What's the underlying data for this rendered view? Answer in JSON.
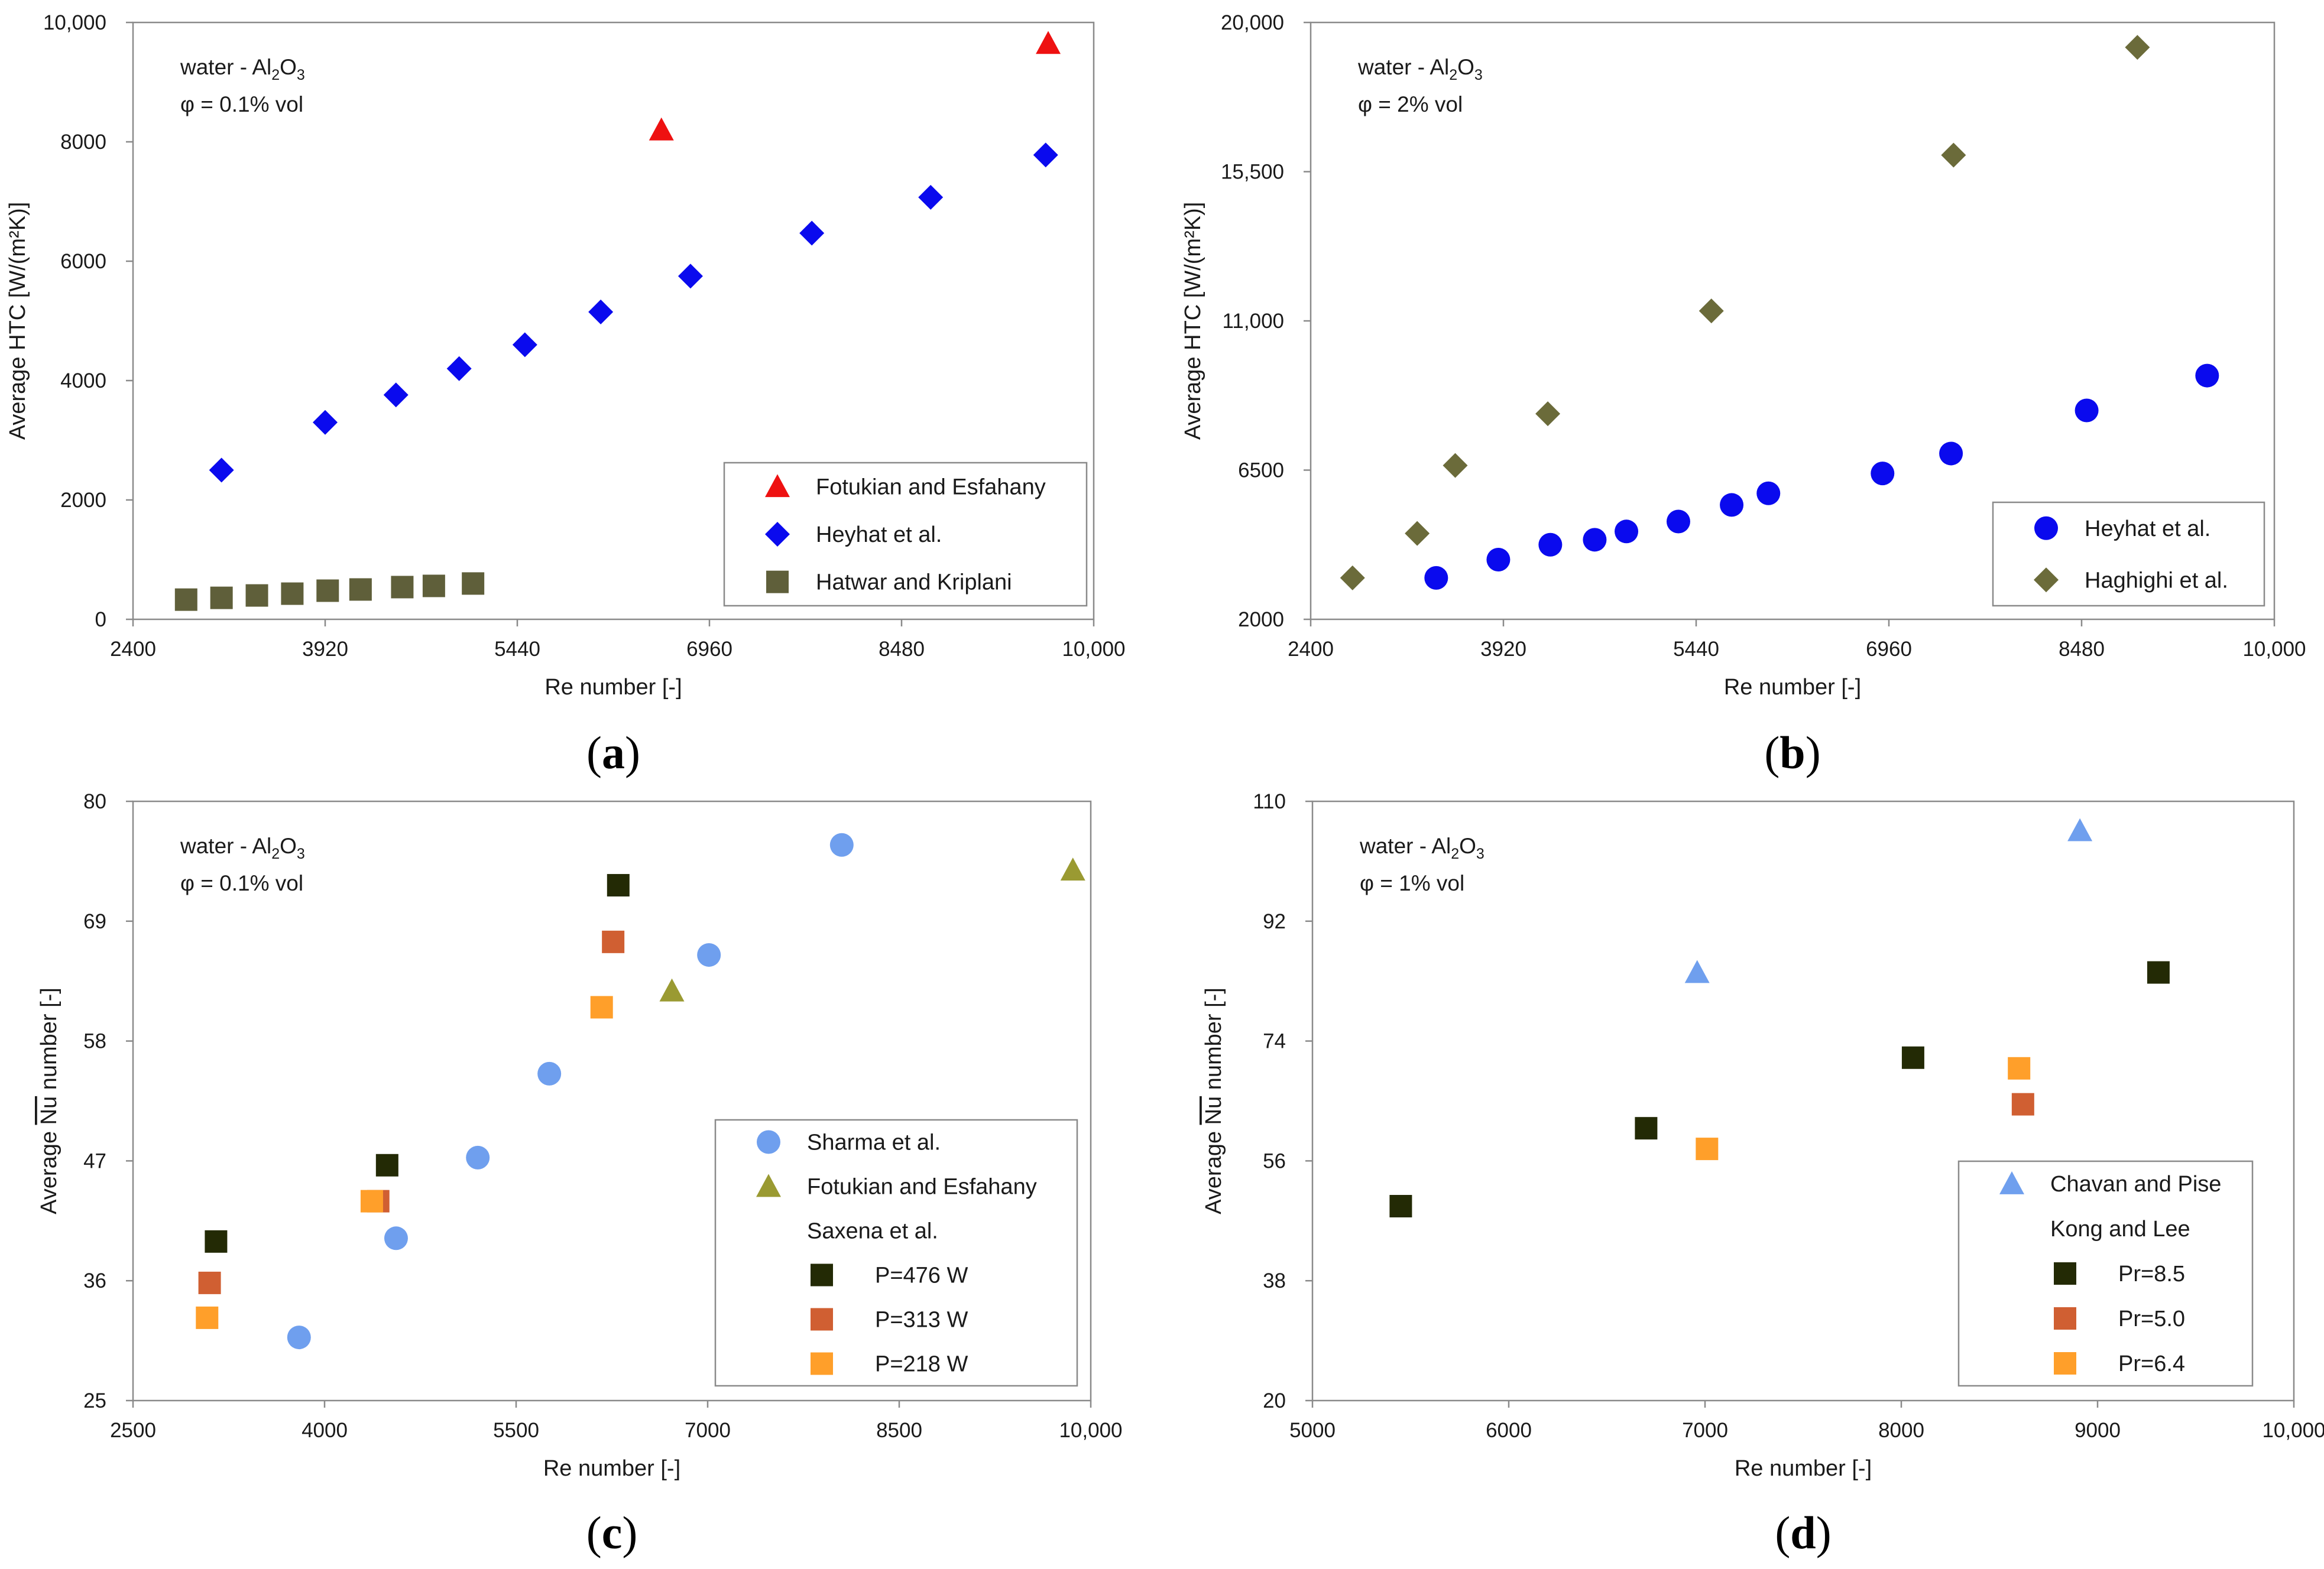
{
  "colors": {
    "red": "#ee1111",
    "blue": "#0a0aee",
    "olive_dark": "#5f5f3a",
    "olive_diamond": "#6b6b3a",
    "light_blue": "#6f9fee",
    "olive": "#9a9a32",
    "black_olive": "#232a05",
    "rust": "#d05f32",
    "orange": "#ff9f2a"
  },
  "chart_data": [
    {
      "id": "a",
      "caption_label": "a",
      "type": "scatter",
      "title": "",
      "annotation_fluid_base": "water - Al",
      "annotation_fluid_sub": "2",
      "annotation_fluid_tail": "O",
      "annotation_fluid_sub2": "3",
      "annotation_phi": "φ = 0.1% vol",
      "xlabel": "Re number [-]",
      "ylabel": "Average HTC [W/(m²K)]",
      "xlim": [
        2400,
        10000
      ],
      "ylim": [
        0,
        10000
      ],
      "xticks": [
        2400,
        3920,
        5440,
        6960,
        8480,
        10000
      ],
      "xtick_labels": [
        "2400",
        "3920",
        "5440",
        "6960",
        "8480",
        "10,000"
      ],
      "yticks": [
        0,
        2000,
        4000,
        6000,
        8000,
        10000
      ],
      "ytick_labels": [
        "0",
        "2000",
        "4000",
        "6000",
        "8000",
        "10,000"
      ],
      "legend_position": "bottom-right",
      "series": [
        {
          "name": "Fotukian and Esfahany",
          "marker": "triangle",
          "color": "#ee1111",
          "x": [
            6580,
            9640
          ],
          "y": [
            8200,
            9650
          ]
        },
        {
          "name": "Heyhat et al.",
          "marker": "diamond",
          "color": "#0a0aee",
          "x": [
            3100,
            3920,
            4480,
            4980,
            5500,
            6100,
            6810,
            7770,
            8710,
            9620
          ],
          "y": [
            2500,
            3300,
            3760,
            4200,
            4600,
            5150,
            5750,
            6470,
            7070,
            7780
          ]
        },
        {
          "name": "Hatwar and Kriplani",
          "marker": "square",
          "color": "#5f5f3a",
          "x": [
            2820,
            3100,
            3380,
            3660,
            3940,
            4200,
            4530,
            4780,
            5090
          ],
          "y": [
            330,
            360,
            400,
            430,
            480,
            500,
            540,
            560,
            600
          ]
        }
      ]
    },
    {
      "id": "b",
      "caption_label": "b",
      "type": "scatter",
      "title": "",
      "annotation_fluid_base": "water - Al",
      "annotation_fluid_sub": "2",
      "annotation_fluid_tail": "O",
      "annotation_fluid_sub2": "3",
      "annotation_phi": "φ = 2% vol",
      "xlabel": "Re number [-]",
      "ylabel": "Average HTC [W/(m²K)]",
      "xlim": [
        2400,
        10000
      ],
      "ylim": [
        2000,
        20000
      ],
      "xticks": [
        2400,
        3920,
        5440,
        6960,
        8480,
        10000
      ],
      "xtick_labels": [
        "2400",
        "3920",
        "5440",
        "6960",
        "8480",
        "10,000"
      ],
      "yticks": [
        2000,
        6500,
        11000,
        15500,
        20000
      ],
      "ytick_labels": [
        "2000",
        "6500",
        "11,000",
        "15,500",
        "20,000"
      ],
      "legend_position": "bottom-right",
      "series": [
        {
          "name": "Heyhat et al.",
          "marker": "circle",
          "color": "#0a0aee",
          "x": [
            3390,
            3880,
            4290,
            4640,
            4890,
            5300,
            5720,
            6010,
            6910,
            7450,
            8520,
            9470
          ],
          "y": [
            3250,
            3800,
            4250,
            4400,
            4650,
            4950,
            5450,
            5800,
            6400,
            7000,
            8300,
            9350
          ]
        },
        {
          "name": "Haghighi et al.",
          "marker": "diamond",
          "color": "#6b6b3a",
          "x": [
            2730,
            3240,
            3540,
            4270,
            5560,
            7470,
            8920
          ],
          "y": [
            3250,
            4590,
            6640,
            8200,
            11300,
            16000,
            19250
          ]
        }
      ]
    },
    {
      "id": "c",
      "caption_label": "c",
      "type": "scatter",
      "title": "",
      "annotation_fluid_base": "water - Al",
      "annotation_fluid_sub": "2",
      "annotation_fluid_tail": "O",
      "annotation_fluid_sub2": "3",
      "annotation_phi": "φ = 0.1% vol",
      "xlabel": "Re number [-]",
      "ylabel": "Average Nu number [-]",
      "ylabel_prefix": "Average ",
      "ylabel_overline": "Nu",
      "ylabel_suffix": " number [-]",
      "xlim": [
        2500,
        10000
      ],
      "ylim": [
        25,
        80
      ],
      "xticks": [
        2500,
        4000,
        5500,
        7000,
        8500,
        10000
      ],
      "xtick_labels": [
        "2500",
        "4000",
        "5500",
        "7000",
        "8500",
        "10,000"
      ],
      "yticks": [
        25,
        36,
        47,
        58,
        69,
        80
      ],
      "ytick_labels": [
        "25",
        "36",
        "47",
        "58",
        "69",
        "80"
      ],
      "legend_position": "bottom-right",
      "legend_group_title": "Saxena et al.",
      "series": [
        {
          "name": "Sharma et al.",
          "marker": "circle",
          "color": "#6f9fee",
          "x": [
            3800,
            4560,
            5200,
            5760,
            7010,
            8050
          ],
          "y": [
            30.8,
            39.9,
            47.3,
            55.0,
            65.9,
            76.0
          ]
        },
        {
          "name": "Fotukian and Esfahany",
          "marker": "triangle",
          "color": "#9a9a32",
          "x": [
            6720,
            9860
          ],
          "y": [
            62.6,
            73.7
          ]
        },
        {
          "name": "P=476 W",
          "marker": "square",
          "color": "#232a05",
          "grouped": true,
          "x": [
            3150,
            4490,
            6300
          ],
          "y": [
            39.6,
            46.6,
            72.3
          ]
        },
        {
          "name": "P=313 W",
          "marker": "square",
          "color": "#d05f32",
          "grouped": true,
          "x": [
            3100,
            4420,
            6260
          ],
          "y": [
            35.8,
            43.3,
            67.1
          ]
        },
        {
          "name": "P=218 W",
          "marker": "square",
          "color": "#ff9f2a",
          "grouped": true,
          "x": [
            3080,
            4370,
            6170
          ],
          "y": [
            32.6,
            43.3,
            61.1
          ]
        }
      ]
    },
    {
      "id": "d",
      "caption_label": "d",
      "type": "scatter",
      "title": "",
      "annotation_fluid_base": "water - Al",
      "annotation_fluid_sub": "2",
      "annotation_fluid_tail": "O",
      "annotation_fluid_sub2": "3",
      "annotation_phi": "φ = 1% vol",
      "xlabel": "Re number [-]",
      "ylabel": "Average Nu number [-]",
      "ylabel_prefix": "Average ",
      "ylabel_overline": "Nu",
      "ylabel_suffix": " number [-]",
      "xlim": [
        5000,
        10000
      ],
      "ylim": [
        20,
        110
      ],
      "xticks": [
        5000,
        6000,
        7000,
        8000,
        9000,
        10000
      ],
      "xtick_labels": [
        "5000",
        "6000",
        "7000",
        "8000",
        "9000",
        "10,000"
      ],
      "yticks": [
        20,
        38,
        56,
        74,
        92,
        110
      ],
      "ytick_labels": [
        "20",
        "38",
        "56",
        "74",
        "92",
        "110"
      ],
      "legend_position": "bottom-right",
      "legend_group_title": "Kong and Lee",
      "series": [
        {
          "name": "Chavan and Pise",
          "marker": "triangle",
          "color": "#6f9fee",
          "x": [
            6960,
            8910
          ],
          "y": [
            84.3,
            105.6
          ]
        },
        {
          "name": "Pr=8.5",
          "marker": "square",
          "color": "#232a05",
          "grouped": true,
          "x": [
            5450,
            6700,
            8060,
            9310
          ],
          "y": [
            49.2,
            60.9,
            71.5,
            84.3
          ]
        },
        {
          "name": "Pr=5.0",
          "marker": "square",
          "color": "#d05f32",
          "grouped": true,
          "x": [
            8620
          ],
          "y": [
            64.5
          ]
        },
        {
          "name": "Pr=6.4",
          "marker": "square",
          "color": "#ff9f2a",
          "grouped": true,
          "x": [
            7010,
            8600
          ],
          "y": [
            57.8,
            69.9
          ]
        }
      ]
    }
  ]
}
